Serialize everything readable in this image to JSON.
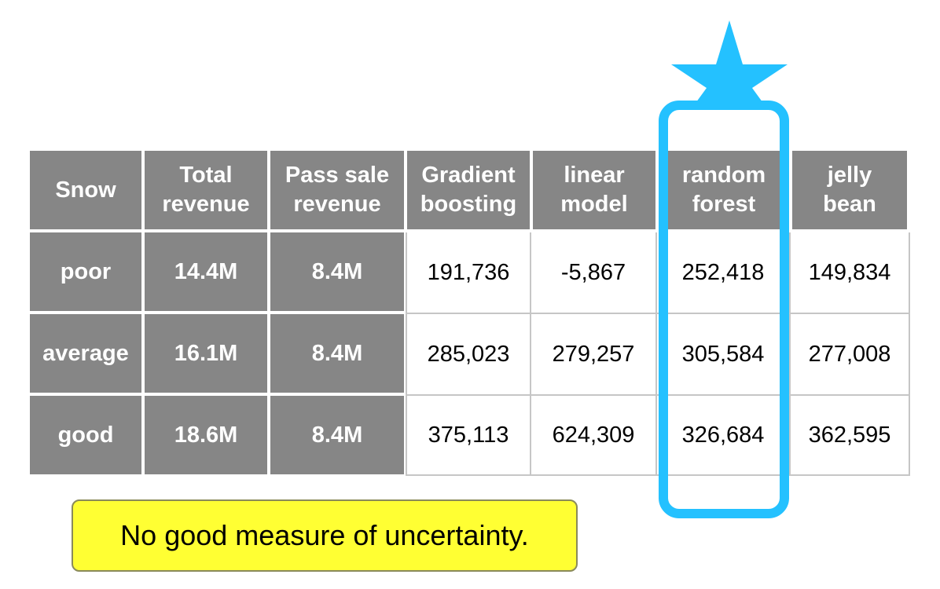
{
  "table": {
    "headers": [
      "Snow",
      "Total\nrevenue",
      "Pass sale\nrevenue",
      "Gradient\nboosting",
      "linear\nmodel",
      "random\nforest",
      "jelly\nbean"
    ],
    "rows": [
      {
        "label": "poor",
        "total": "14.4M",
        "pass": "8.4M",
        "values": [
          "191,736",
          "-5,867",
          "252,418",
          "149,834"
        ]
      },
      {
        "label": "average",
        "total": "16.1M",
        "pass": "8.4M",
        "values": [
          "285,023",
          "279,257",
          "305,584",
          "277,008"
        ]
      },
      {
        "label": "good",
        "total": "18.6M",
        "pass": "8.4M",
        "values": [
          "375,113",
          "624,309",
          "326,684",
          "362,595"
        ]
      }
    ]
  },
  "highlight": {
    "column": "random forest",
    "color": "#24c1ff",
    "icon": "star-icon"
  },
  "note": {
    "text": "No good measure of uncertainty.",
    "background": "#ffff33"
  }
}
